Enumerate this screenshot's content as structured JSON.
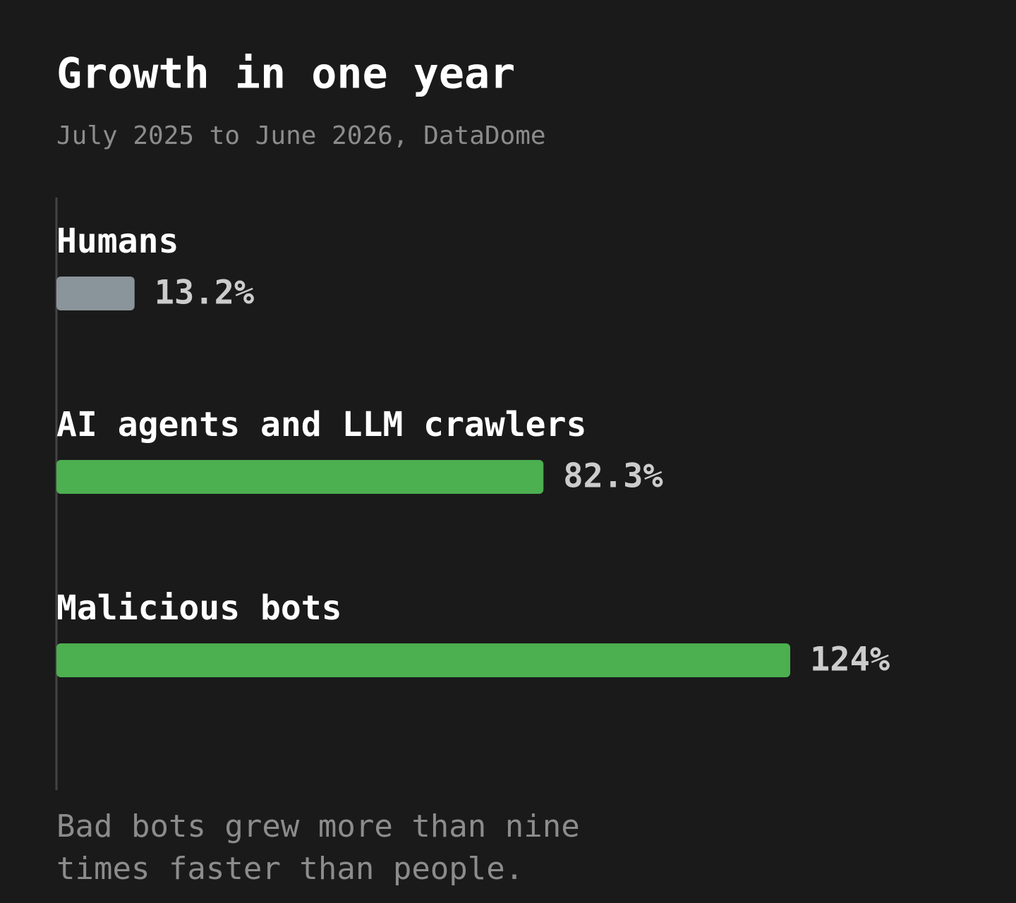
{
  "chart_data": {
    "type": "bar",
    "orientation": "horizontal",
    "title": "Growth in one year",
    "subtitle": "July 2025 to June 2026, DataDome",
    "categories": [
      "Humans",
      "AI agents and LLM crawlers",
      "Malicious bots"
    ],
    "values": [
      13.2,
      82.3,
      124
    ],
    "value_labels": [
      "13.2%",
      "82.3%",
      "124%"
    ],
    "colors": [
      "#8a949b",
      "#4caf50",
      "#4caf50"
    ],
    "annotation": "Bad bots grew more than nine times faster than people."
  }
}
